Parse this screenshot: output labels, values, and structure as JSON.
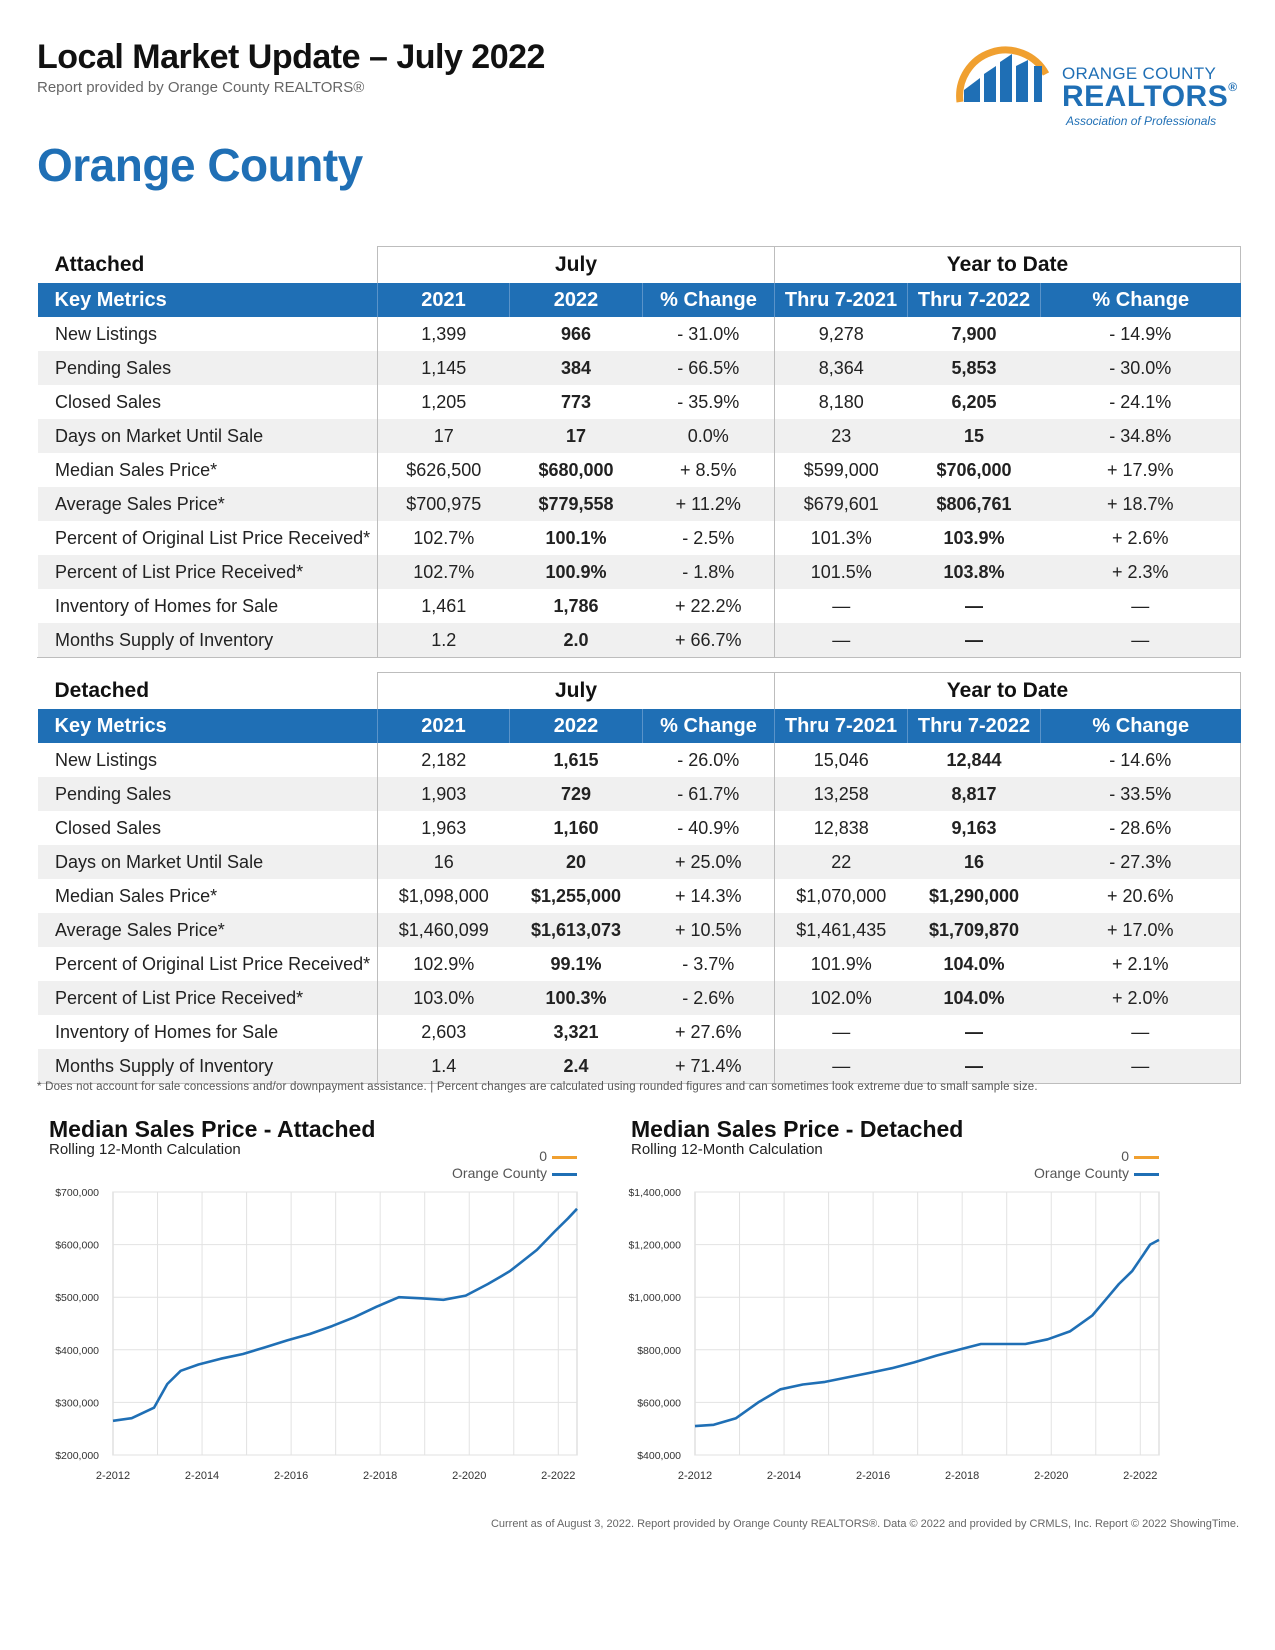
{
  "header": {
    "title": "Local Market Update – July 2022",
    "subtitle": "Report provided by Orange County REALTORS®"
  },
  "logo": {
    "line1": "ORANGE COUNTY",
    "line2": "REALTORS",
    "reg": "®",
    "line3": "Association of Professionals"
  },
  "region": "Orange County",
  "attached": {
    "label": "Attached",
    "group_july": "July",
    "group_ytd": "Year to Date",
    "columns": [
      "Key Metrics",
      "2021",
      "2022",
      "% Change",
      "Thru 7-2021",
      "Thru 7-2022",
      "% Change"
    ],
    "rows": [
      [
        "New Listings",
        "1,399",
        "966",
        "- 31.0%",
        "9,278",
        "7,900",
        "- 14.9%"
      ],
      [
        "Pending Sales",
        "1,145",
        "384",
        "- 66.5%",
        "8,364",
        "5,853",
        "- 30.0%"
      ],
      [
        "Closed Sales",
        "1,205",
        "773",
        "- 35.9%",
        "8,180",
        "6,205",
        "- 24.1%"
      ],
      [
        "Days on Market Until Sale",
        "17",
        "17",
        "0.0%",
        "23",
        "15",
        "- 34.8%"
      ],
      [
        "Median Sales Price*",
        "$626,500",
        "$680,000",
        "+ 8.5%",
        "$599,000",
        "$706,000",
        "+ 17.9%"
      ],
      [
        "Average Sales Price*",
        "$700,975",
        "$779,558",
        "+ 11.2%",
        "$679,601",
        "$806,761",
        "+ 18.7%"
      ],
      [
        "Percent of Original List Price Received*",
        "102.7%",
        "100.1%",
        "- 2.5%",
        "101.3%",
        "103.9%",
        "+ 2.6%"
      ],
      [
        "Percent of List Price Received*",
        "102.7%",
        "100.9%",
        "- 1.8%",
        "101.5%",
        "103.8%",
        "+ 2.3%"
      ],
      [
        "Inventory of Homes for Sale",
        "1,461",
        "1,786",
        "+ 22.2%",
        "—",
        "—",
        "—"
      ],
      [
        "Months Supply of Inventory",
        "1.2",
        "2.0",
        "+ 66.7%",
        "—",
        "—",
        "—"
      ]
    ]
  },
  "detached": {
    "label": "Detached",
    "group_july": "July",
    "group_ytd": "Year to Date",
    "columns": [
      "Key Metrics",
      "2021",
      "2022",
      "% Change",
      "Thru 7-2021",
      "Thru 7-2022",
      "% Change"
    ],
    "rows": [
      [
        "New Listings",
        "2,182",
        "1,615",
        "- 26.0%",
        "15,046",
        "12,844",
        "- 14.6%"
      ],
      [
        "Pending Sales",
        "1,903",
        "729",
        "- 61.7%",
        "13,258",
        "8,817",
        "- 33.5%"
      ],
      [
        "Closed Sales",
        "1,963",
        "1,160",
        "- 40.9%",
        "12,838",
        "9,163",
        "- 28.6%"
      ],
      [
        "Days on Market Until Sale",
        "16",
        "20",
        "+ 25.0%",
        "22",
        "16",
        "- 27.3%"
      ],
      [
        "Median Sales Price*",
        "$1,098,000",
        "$1,255,000",
        "+ 14.3%",
        "$1,070,000",
        "$1,290,000",
        "+ 20.6%"
      ],
      [
        "Average Sales Price*",
        "$1,460,099",
        "$1,613,073",
        "+ 10.5%",
        "$1,461,435",
        "$1,709,870",
        "+ 17.0%"
      ],
      [
        "Percent of Original List Price Received*",
        "102.9%",
        "99.1%",
        "- 3.7%",
        "101.9%",
        "104.0%",
        "+ 2.1%"
      ],
      [
        "Percent of List Price Received*",
        "103.0%",
        "100.3%",
        "- 2.6%",
        "102.0%",
        "104.0%",
        "+ 2.0%"
      ],
      [
        "Inventory of Homes for Sale",
        "2,603",
        "3,321",
        "+ 27.6%",
        "—",
        "—",
        "—"
      ],
      [
        "Months Supply of Inventory",
        "1.4",
        "2.4",
        "+ 71.4%",
        "—",
        "—",
        "—"
      ]
    ]
  },
  "footnote": "* Does not account for sale concessions and/or downpayment assistance.  |  Percent changes are calculated using rounded figures and can sometimes look extreme due to small sample size.",
  "bottom_note": "Current as of August 3, 2022. Report provided by Orange County REALTORS®. Data © 2022 and provided by CRMLS, Inc. Report © 2022 ShowingTime.",
  "colors": {
    "accent": "#1f6fb5",
    "series_orange": "#f0a030",
    "series_blue": "#1f6fb5"
  },
  "chart_data": [
    {
      "type": "line",
      "title": "Median Sales Price - Attached",
      "subtitle": "Rolling 12-Month Calculation",
      "legend": [
        "0",
        "Orange County"
      ],
      "ylim": [
        200000,
        700000
      ],
      "yticks": [
        700000,
        600000,
        500000,
        400000,
        300000,
        200000
      ],
      "ytick_labels": [
        "$700,000",
        "$600,000",
        "$500,000",
        "$400,000",
        "$300,000",
        "$200,000"
      ],
      "xtick_labels": [
        "2-2012",
        "2-2014",
        "2-2016",
        "2-2018",
        "2-2020",
        "2-2022"
      ],
      "xlim": [
        2012.08,
        2022.5
      ],
      "series": [
        {
          "name": "Orange County",
          "x": [
            2012.08,
            2012.5,
            2013.0,
            2013.3,
            2013.6,
            2014.0,
            2014.5,
            2015.0,
            2015.5,
            2016.0,
            2016.5,
            2017.0,
            2017.5,
            2018.0,
            2018.5,
            2019.0,
            2019.5,
            2020.0,
            2020.5,
            2020.8,
            2021.0,
            2021.3,
            2021.6,
            2022.0,
            2022.3,
            2022.5
          ],
          "values": [
            265000,
            270000,
            290000,
            335000,
            360000,
            372000,
            383000,
            392000,
            405000,
            418000,
            430000,
            445000,
            462000,
            482000,
            500000,
            498000,
            495000,
            503000,
            525000,
            540000,
            550000,
            570000,
            590000,
            625000,
            650000,
            668000
          ]
        }
      ]
    },
    {
      "type": "line",
      "title": "Median Sales Price - Detached",
      "subtitle": "Rolling 12-Month Calculation",
      "legend": [
        "0",
        "Orange County"
      ],
      "ylim": [
        400000,
        1400000
      ],
      "yticks": [
        1400000,
        1200000,
        1000000,
        800000,
        600000,
        400000
      ],
      "ytick_labels": [
        "$1,400,000",
        "$1,200,000",
        "$1,000,000",
        "$800,000",
        "$600,000",
        "$400,000"
      ],
      "xtick_labels": [
        "2-2012",
        "2-2014",
        "2-2016",
        "2-2018",
        "2-2020",
        "2-2022"
      ],
      "xlim": [
        2012.08,
        2022.5
      ],
      "series": [
        {
          "name": "Orange County",
          "x": [
            2012.08,
            2012.5,
            2013.0,
            2013.5,
            2014.0,
            2014.5,
            2015.0,
            2015.5,
            2016.0,
            2016.5,
            2017.0,
            2017.5,
            2018.0,
            2018.5,
            2019.0,
            2019.5,
            2020.0,
            2020.5,
            2021.0,
            2021.3,
            2021.6,
            2021.9,
            2022.1,
            2022.3,
            2022.5
          ],
          "values": [
            510000,
            515000,
            540000,
            600000,
            650000,
            668000,
            678000,
            695000,
            712000,
            730000,
            752000,
            778000,
            800000,
            822000,
            822000,
            822000,
            840000,
            870000,
            930000,
            990000,
            1050000,
            1100000,
            1150000,
            1200000,
            1218000
          ]
        }
      ]
    }
  ]
}
